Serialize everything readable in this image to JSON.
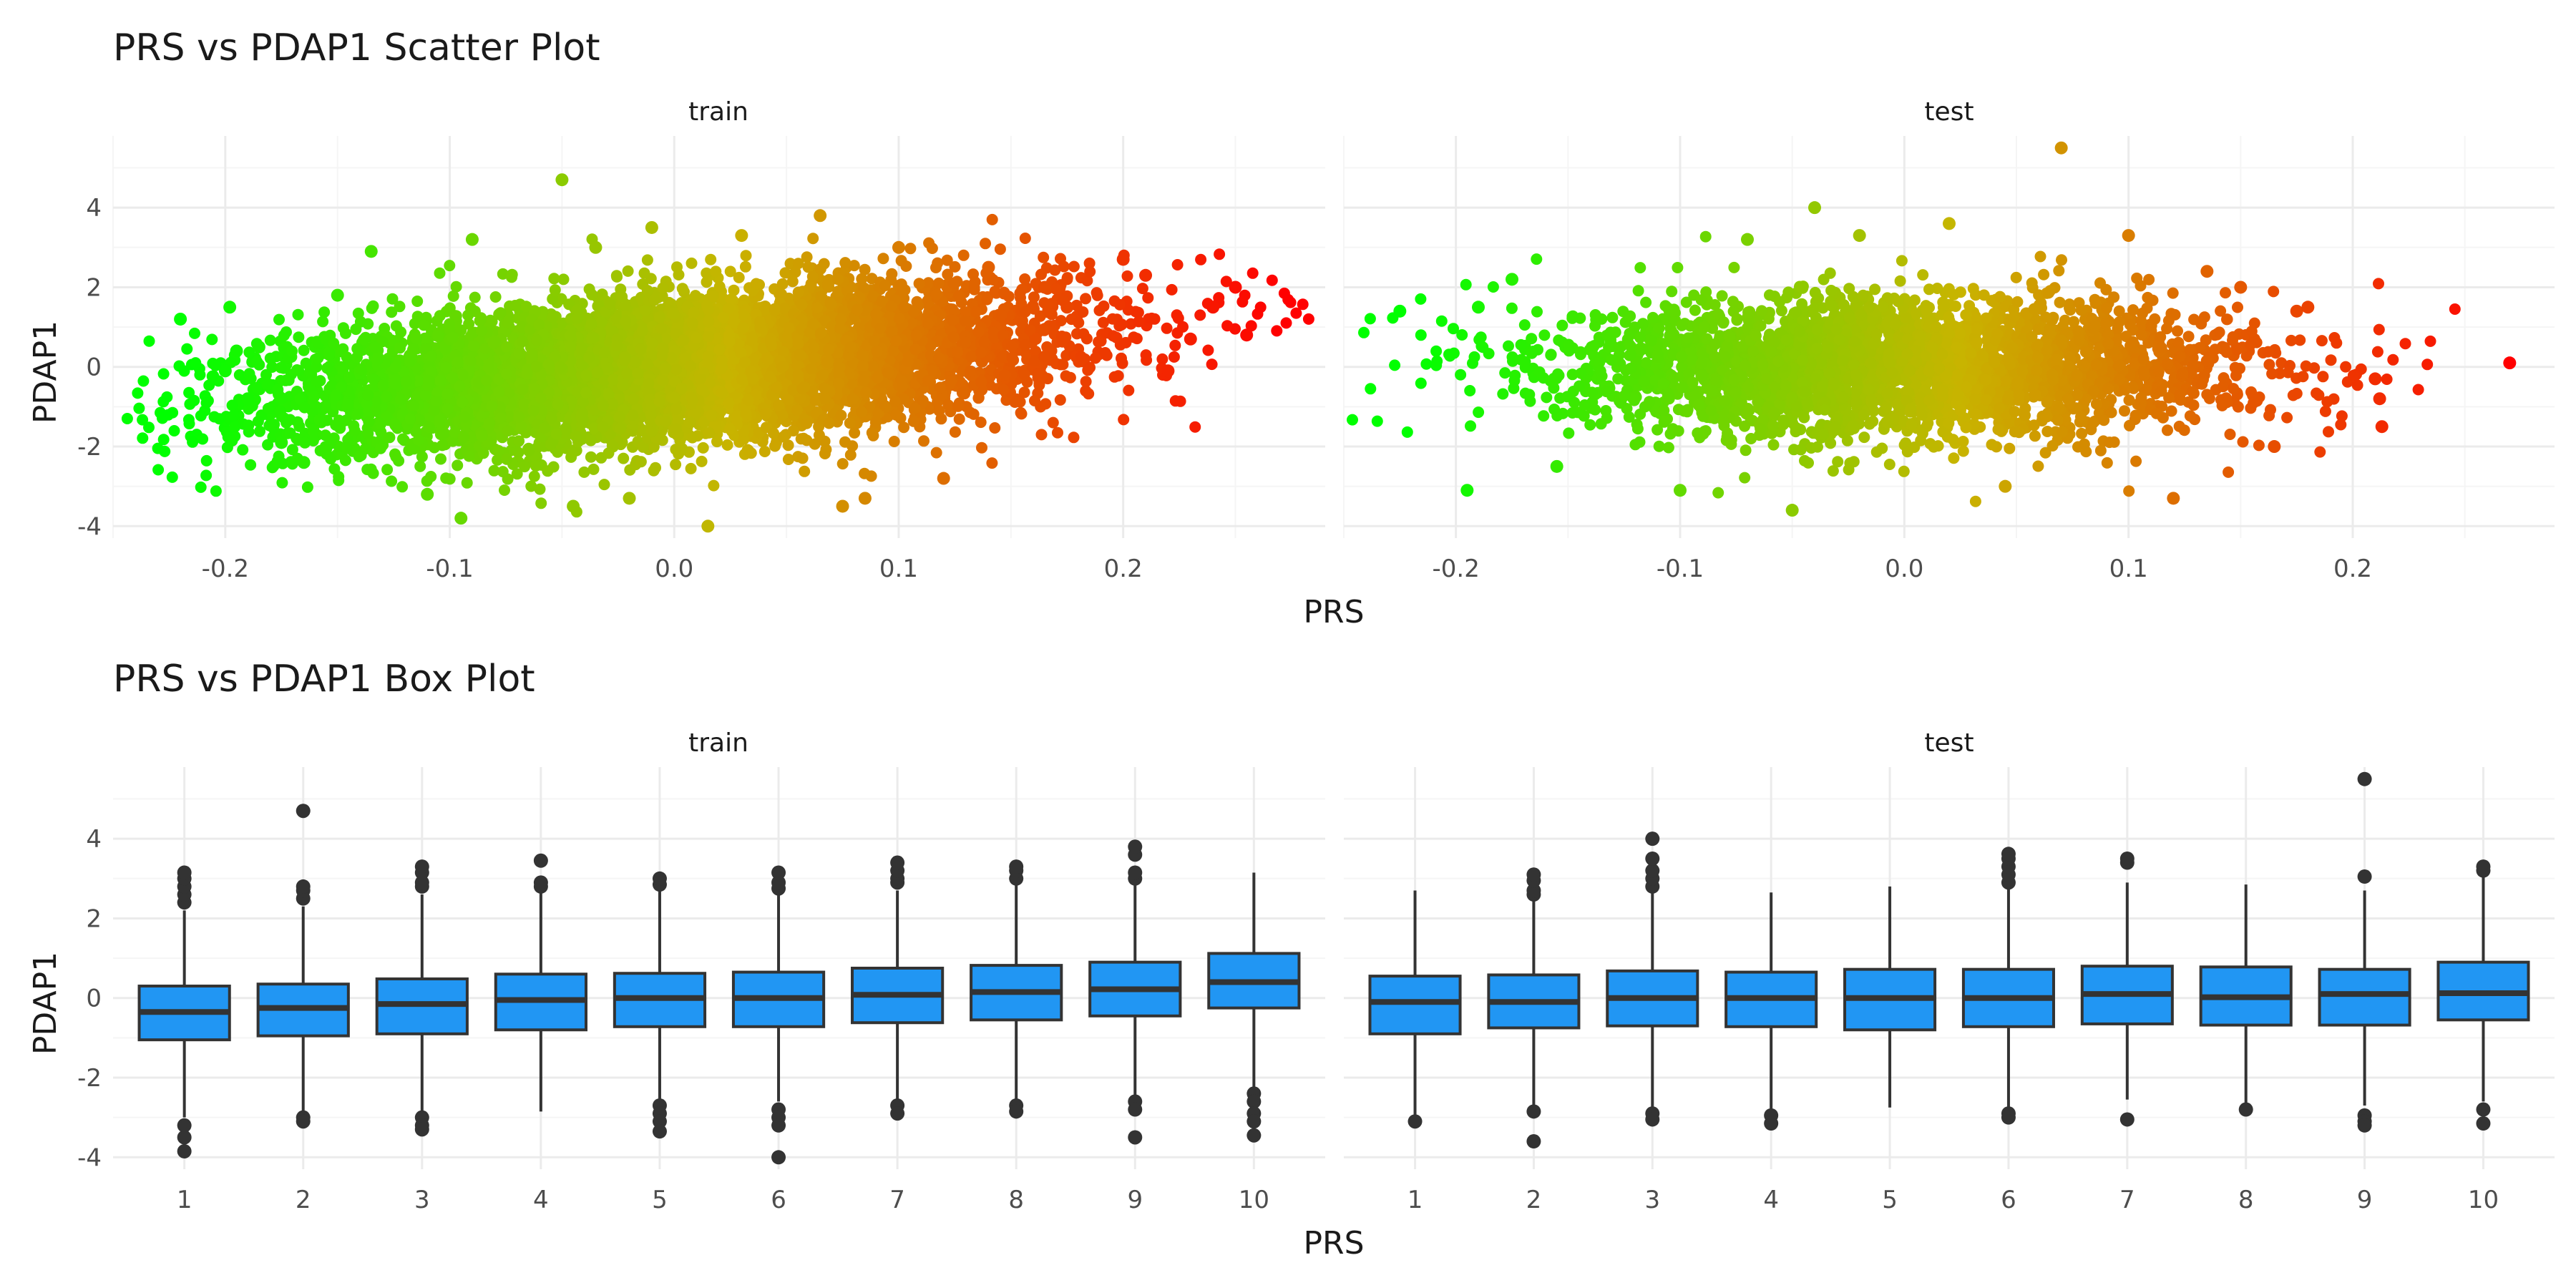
{
  "chart_data": [
    {
      "type": "scatter",
      "title": "PRS vs PDAP1 Scatter Plot",
      "xlabel": "PRS",
      "ylabel": "PDAP1",
      "facets": [
        "train",
        "test"
      ],
      "xlim": [
        -0.25,
        0.29
      ],
      "ylim": [
        -4.3,
        5.8
      ],
      "xticks": [
        -0.2,
        -0.1,
        0.0,
        0.1,
        0.2
      ],
      "xtick_labels": [
        "-0.2",
        "-0.1",
        "0.0",
        "0.1",
        "0.2"
      ],
      "yticks": [
        -4,
        -2,
        0,
        2,
        4
      ],
      "ytick_labels": [
        "-4",
        "-2",
        "0",
        "2",
        "4"
      ],
      "grid": true,
      "color_scale": {
        "low": "#00ff00",
        "mid": "#c8b400",
        "high": "#ff0000",
        "mapped_to": "PRS"
      },
      "series": [
        {
          "facet": "train",
          "x": [
            -0.22,
            -0.2,
            -0.198,
            -0.195,
            -0.19,
            -0.185,
            -0.175,
            -0.165,
            -0.15,
            -0.135,
            -0.11,
            -0.095,
            -0.09,
            -0.05,
            -0.045,
            -0.035,
            -0.02,
            -0.01,
            0.015,
            0.03,
            0.065,
            0.075,
            0.085,
            0.1,
            0.12,
            0.14,
            0.165,
            0.175,
            0.2,
            0.21,
            0.22,
            0.23,
            0.24,
            0.25,
            0.255
          ],
          "y": [
            1.2,
            -0.1,
            1.5,
            0.4,
            -0.8,
            0.5,
            -1.9,
            -2.4,
            1.8,
            2.9,
            -3.2,
            -3.8,
            3.2,
            4.7,
            -3.5,
            3.0,
            -3.3,
            3.5,
            -4.0,
            3.3,
            3.8,
            -3.5,
            -3.3,
            3.0,
            -2.8,
            2.5,
            2.0,
            1.5,
            2.7,
            2.3,
            -0.1,
            0.7,
            1.5,
            2.0,
            0.8
          ],
          "cloud": {
            "x_range": [
              -0.18,
              0.18
            ],
            "y_mean": 0.0,
            "y_sd": 1.05,
            "trend": "mild positive"
          }
        },
        {
          "facet": "test",
          "x": [
            -0.225,
            -0.195,
            -0.19,
            -0.175,
            -0.155,
            -0.1,
            -0.07,
            -0.05,
            -0.04,
            -0.02,
            0.02,
            0.045,
            0.07,
            0.1,
            0.12,
            0.135,
            0.15,
            0.165,
            0.175,
            0.18,
            0.21,
            0.212,
            0.213,
            0.27
          ],
          "y": [
            1.4,
            -3.1,
            1.5,
            2.2,
            -2.5,
            -3.1,
            3.2,
            -3.6,
            4.0,
            3.3,
            3.6,
            -3.0,
            5.5,
            3.3,
            -3.3,
            2.4,
            2.0,
            -2.0,
            1.4,
            1.5,
            -0.3,
            -0.8,
            -1.5,
            0.1
          ],
          "cloud": {
            "x_range": [
              -0.16,
              0.16
            ],
            "y_mean": 0.0,
            "y_sd": 1.0,
            "trend": "flat"
          }
        }
      ]
    },
    {
      "type": "box",
      "title": "PRS vs PDAP1 Box Plot",
      "xlabel": "PRS",
      "ylabel": "PDAP1",
      "facets": [
        "train",
        "test"
      ],
      "categories": [
        "1",
        "2",
        "3",
        "4",
        "5",
        "6",
        "7",
        "8",
        "9",
        "10"
      ],
      "ylim": [
        -4.3,
        5.8
      ],
      "yticks": [
        -4,
        -2,
        0,
        2,
        4
      ],
      "ytick_labels": [
        "-4",
        "-2",
        "0",
        "2",
        "4"
      ],
      "grid": true,
      "box_color": "#2196f3",
      "series": [
        {
          "facet": "train",
          "boxes": [
            {
              "q1": -1.05,
              "median": -0.35,
              "q3": 0.3,
              "whisker_low": -3.0,
              "whisker_high": 2.2,
              "outliers": [
                2.4,
                2.6,
                2.8,
                3.0,
                3.15,
                -3.2,
                -3.5,
                -3.85
              ]
            },
            {
              "q1": -0.95,
              "median": -0.25,
              "q3": 0.35,
              "whisker_low": -2.9,
              "whisker_high": 2.3,
              "outliers": [
                2.5,
                2.7,
                2.8,
                4.7,
                -3.0,
                -3.1
              ]
            },
            {
              "q1": -0.9,
              "median": -0.15,
              "q3": 0.48,
              "whisker_low": -2.9,
              "whisker_high": 2.6,
              "outliers": [
                2.8,
                2.9,
                3.15,
                3.3,
                -3.0,
                -3.2,
                -3.3
              ]
            },
            {
              "q1": -0.8,
              "median": -0.05,
              "q3": 0.6,
              "whisker_low": -2.85,
              "whisker_high": 2.7,
              "outliers": [
                2.8,
                2.9,
                3.45
              ]
            },
            {
              "q1": -0.72,
              "median": 0.0,
              "q3": 0.62,
              "whisker_low": -2.6,
              "whisker_high": 2.75,
              "outliers": [
                2.85,
                3.0,
                -2.7,
                -2.9,
                -3.1,
                -3.35
              ]
            },
            {
              "q1": -0.72,
              "median": 0.0,
              "q3": 0.65,
              "whisker_low": -2.6,
              "whisker_high": 2.6,
              "outliers": [
                2.75,
                2.9,
                3.15,
                -2.8,
                -3.0,
                -3.2,
                -4.0
              ]
            },
            {
              "q1": -0.62,
              "median": 0.08,
              "q3": 0.75,
              "whisker_low": -2.55,
              "whisker_high": 2.7,
              "outliers": [
                2.9,
                3.0,
                3.2,
                3.4,
                -2.7,
                -2.9
              ]
            },
            {
              "q1": -0.55,
              "median": 0.15,
              "q3": 0.82,
              "whisker_low": -2.6,
              "whisker_high": 2.85,
              "outliers": [
                3.0,
                3.2,
                3.3,
                -2.7,
                -2.85
              ]
            },
            {
              "q1": -0.45,
              "median": 0.22,
              "q3": 0.9,
              "whisker_low": -2.45,
              "whisker_high": 2.85,
              "outliers": [
                3.0,
                3.15,
                3.6,
                3.8,
                -2.6,
                -2.8,
                -3.5
              ]
            },
            {
              "q1": -0.25,
              "median": 0.4,
              "q3": 1.12,
              "whisker_low": -2.3,
              "whisker_high": 3.15,
              "outliers": [
                -2.4,
                -2.6,
                -2.9,
                -3.1,
                -3.45
              ]
            }
          ]
        },
        {
          "facet": "test",
          "boxes": [
            {
              "q1": -0.9,
              "median": -0.1,
              "q3": 0.55,
              "whisker_low": -3.0,
              "whisker_high": 2.7,
              "outliers": [
                -3.1
              ]
            },
            {
              "q1": -0.75,
              "median": -0.1,
              "q3": 0.58,
              "whisker_low": -2.7,
              "whisker_high": 2.5,
              "outliers": [
                2.6,
                2.7,
                2.95,
                3.1,
                -2.85,
                -3.6
              ]
            },
            {
              "q1": -0.7,
              "median": 0.0,
              "q3": 0.68,
              "whisker_low": -2.8,
              "whisker_high": 2.7,
              "outliers": [
                2.8,
                3.0,
                3.2,
                3.5,
                4.0,
                -2.9,
                -3.05
              ]
            },
            {
              "q1": -0.72,
              "median": 0.0,
              "q3": 0.65,
              "whisker_low": -2.8,
              "whisker_high": 2.65,
              "outliers": [
                -2.95,
                -3.15
              ]
            },
            {
              "q1": -0.8,
              "median": 0.0,
              "q3": 0.72,
              "whisker_low": -2.75,
              "whisker_high": 2.8,
              "outliers": []
            },
            {
              "q1": -0.72,
              "median": 0.0,
              "q3": 0.72,
              "whisker_low": -2.8,
              "whisker_high": 2.75,
              "outliers": [
                2.9,
                3.1,
                3.3,
                3.5,
                3.62,
                -2.9,
                -3.0
              ]
            },
            {
              "q1": -0.65,
              "median": 0.1,
              "q3": 0.8,
              "whisker_low": -2.55,
              "whisker_high": 2.9,
              "outliers": [
                3.4,
                3.5,
                -3.05
              ]
            },
            {
              "q1": -0.68,
              "median": 0.02,
              "q3": 0.78,
              "whisker_low": -2.65,
              "whisker_high": 2.85,
              "outliers": [
                -2.8
              ]
            },
            {
              "q1": -0.68,
              "median": 0.1,
              "q3": 0.72,
              "whisker_low": -2.7,
              "whisker_high": 2.7,
              "outliers": [
                3.05,
                5.5,
                -2.95,
                -3.1,
                -3.2
              ]
            },
            {
              "q1": -0.55,
              "median": 0.12,
              "q3": 0.9,
              "whisker_low": -2.6,
              "whisker_high": 3.1,
              "outliers": [
                3.2,
                3.3,
                -2.8,
                -3.15
              ]
            }
          ]
        }
      ]
    }
  ]
}
